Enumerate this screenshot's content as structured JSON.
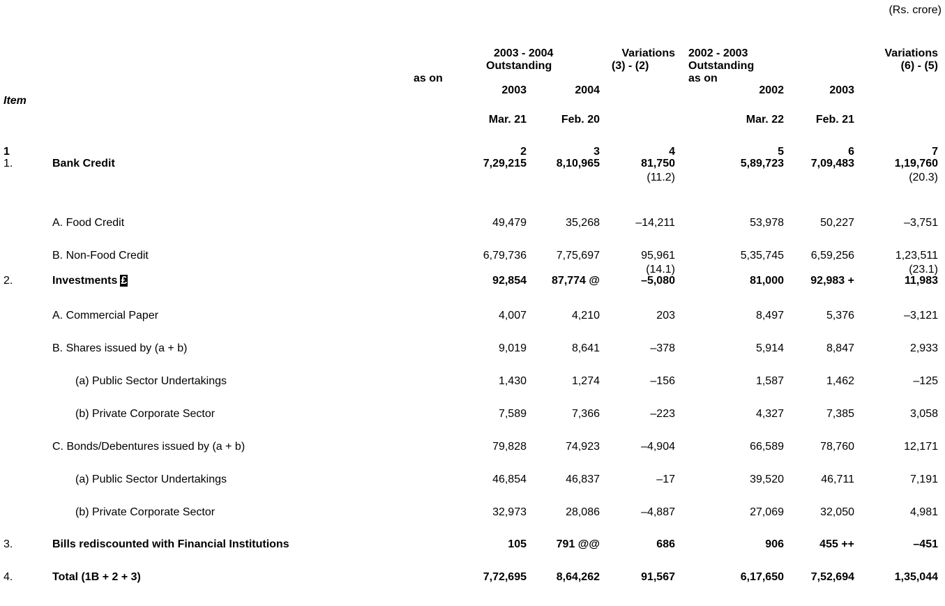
{
  "unit": "(Rs. crore)",
  "header": {
    "group1": {
      "period": "2003 - 2004",
      "outstanding": "Outstanding",
      "as_on": "as on"
    },
    "variation1": {
      "label": "Variations",
      "formula": "(3) - (2)"
    },
    "group2": {
      "period": "2002 - 2003",
      "outstanding": "Outstanding",
      "as_on": "as on"
    },
    "variation2": {
      "label": "Variations",
      "formula": "(6) - (5)"
    },
    "years": [
      "2003",
      "2004",
      "2002",
      "2003"
    ],
    "dates": [
      "Mar. 21",
      "Feb. 20",
      "Mar. 22",
      "Feb. 21"
    ],
    "item": "Item",
    "column_numbers": [
      "1",
      "2",
      "3",
      "4",
      "5",
      "6",
      "7"
    ]
  },
  "rows": [
    {
      "number": "1.",
      "label": "Bank Credit",
      "bold": true,
      "level": 0,
      "cells": [
        "7,29,215",
        "8,10,965",
        "81,750",
        "5,89,723",
        "7,09,483",
        "1,19,760"
      ],
      "notes": [
        {
          "column": 4,
          "text": "(11.2)"
        },
        {
          "column": 7,
          "text": "(20.3)"
        }
      ]
    },
    {
      "label": "A.  Food Credit",
      "level": 1,
      "cells": [
        "49,479",
        "35,268",
        "–14,211",
        "53,978",
        "50,227",
        "–3,751"
      ]
    },
    {
      "label": "B. Non-Food Credit",
      "level": 1,
      "cells": [
        "6,79,736",
        "7,75,697",
        "95,961",
        "5,35,745",
        "6,59,256",
        "1,23,511"
      ],
      "notes": [
        {
          "column": 4,
          "text": "(14.1)"
        },
        {
          "column": 7,
          "text": "(23.1)"
        }
      ]
    },
    {
      "number": "2.",
      "label": "Investments",
      "symbol": "£",
      "bold": true,
      "level": 0,
      "cells": [
        "92,854",
        "87,774 @",
        "–5,080",
        "81,000",
        "92,983 +",
        "11,983"
      ]
    },
    {
      "label": "A.  Commercial Paper",
      "level": 1,
      "cells": [
        "4,007",
        "4,210",
        "203",
        "8,497",
        "5,376",
        "–3,121"
      ]
    },
    {
      "label": "B.  Shares issued by (a + b)",
      "level": 1,
      "cells": [
        "9,019",
        "8,641",
        "–378",
        "5,914",
        "8,847",
        "2,933"
      ]
    },
    {
      "label": "(a) Public Sector Undertakings",
      "level": 2,
      "cells": [
        "1,430",
        "1,274",
        "–156",
        "1,587",
        "1,462",
        "–125"
      ]
    },
    {
      "label": "(b) Private Corporate Sector",
      "level": 2,
      "cells": [
        "7,589",
        "7,366",
        "–223",
        "4,327",
        "7,385",
        "3,058"
      ]
    },
    {
      "label": "C.  Bonds/Debentures issued by (a + b)",
      "level": 1,
      "cells": [
        "79,828",
        "74,923",
        "–4,904",
        "66,589",
        "78,760",
        "12,171"
      ]
    },
    {
      "label": "(a) Public Sector Undertakings",
      "level": 2,
      "cells": [
        "46,854",
        "46,837",
        "–17",
        "39,520",
        "46,711",
        "7,191"
      ]
    },
    {
      "label": "(b) Private Corporate Sector",
      "level": 2,
      "cells": [
        "32,973",
        "28,086",
        "–4,887",
        "27,069",
        "32,050",
        "4,981"
      ]
    },
    {
      "number": "3.",
      "label": "Bills rediscounted with Financial Institutions",
      "bold": true,
      "level": 0,
      "cells": [
        "105",
        "791 @@",
        "686",
        "906",
        "455 ++",
        "–451"
      ]
    },
    {
      "number": "4.",
      "label": "Total (1B + 2 + 3)",
      "bold": true,
      "level": 0,
      "cells": [
        "7,72,695",
        "8,64,262",
        "91,567",
        "6,17,650",
        "7,52,694",
        "1,35,044"
      ]
    }
  ]
}
